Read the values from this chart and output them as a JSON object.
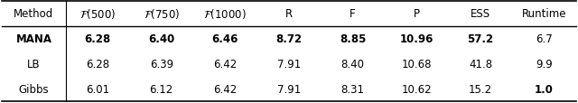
{
  "col_labels": [
    "Method",
    "$\\mathcal{F}(500)$",
    "$\\mathcal{F}(750)$",
    "$\\mathcal{F}(1000)$",
    "R",
    "F",
    "P",
    "ESS",
    "Runtime"
  ],
  "rows": [
    [
      "MANA",
      "6.28",
      "6.40",
      "6.46",
      "8.72",
      "8.85",
      "10.96",
      "57.2",
      "6.7"
    ],
    [
      "LB",
      "6.28",
      "6.39",
      "6.42",
      "7.91",
      "8.40",
      "10.68",
      "41.8",
      "9.9"
    ],
    [
      "Gibbs",
      "6.01",
      "6.12",
      "6.42",
      "7.91",
      "8.31",
      "10.62",
      "15.2",
      "1.0"
    ]
  ],
  "bold_data_cells": {
    "0": [
      1,
      2,
      3,
      4,
      5,
      6,
      7
    ],
    "2": [
      8
    ]
  },
  "bold_method_rows": [
    0
  ],
  "fig_width": 6.4,
  "fig_height": 1.15,
  "dpi": 100,
  "font_size": 8.5,
  "bg_color": "#ffffff",
  "outer_lw": 1.2,
  "header_lw": 1.0,
  "vert_lw": 0.8
}
